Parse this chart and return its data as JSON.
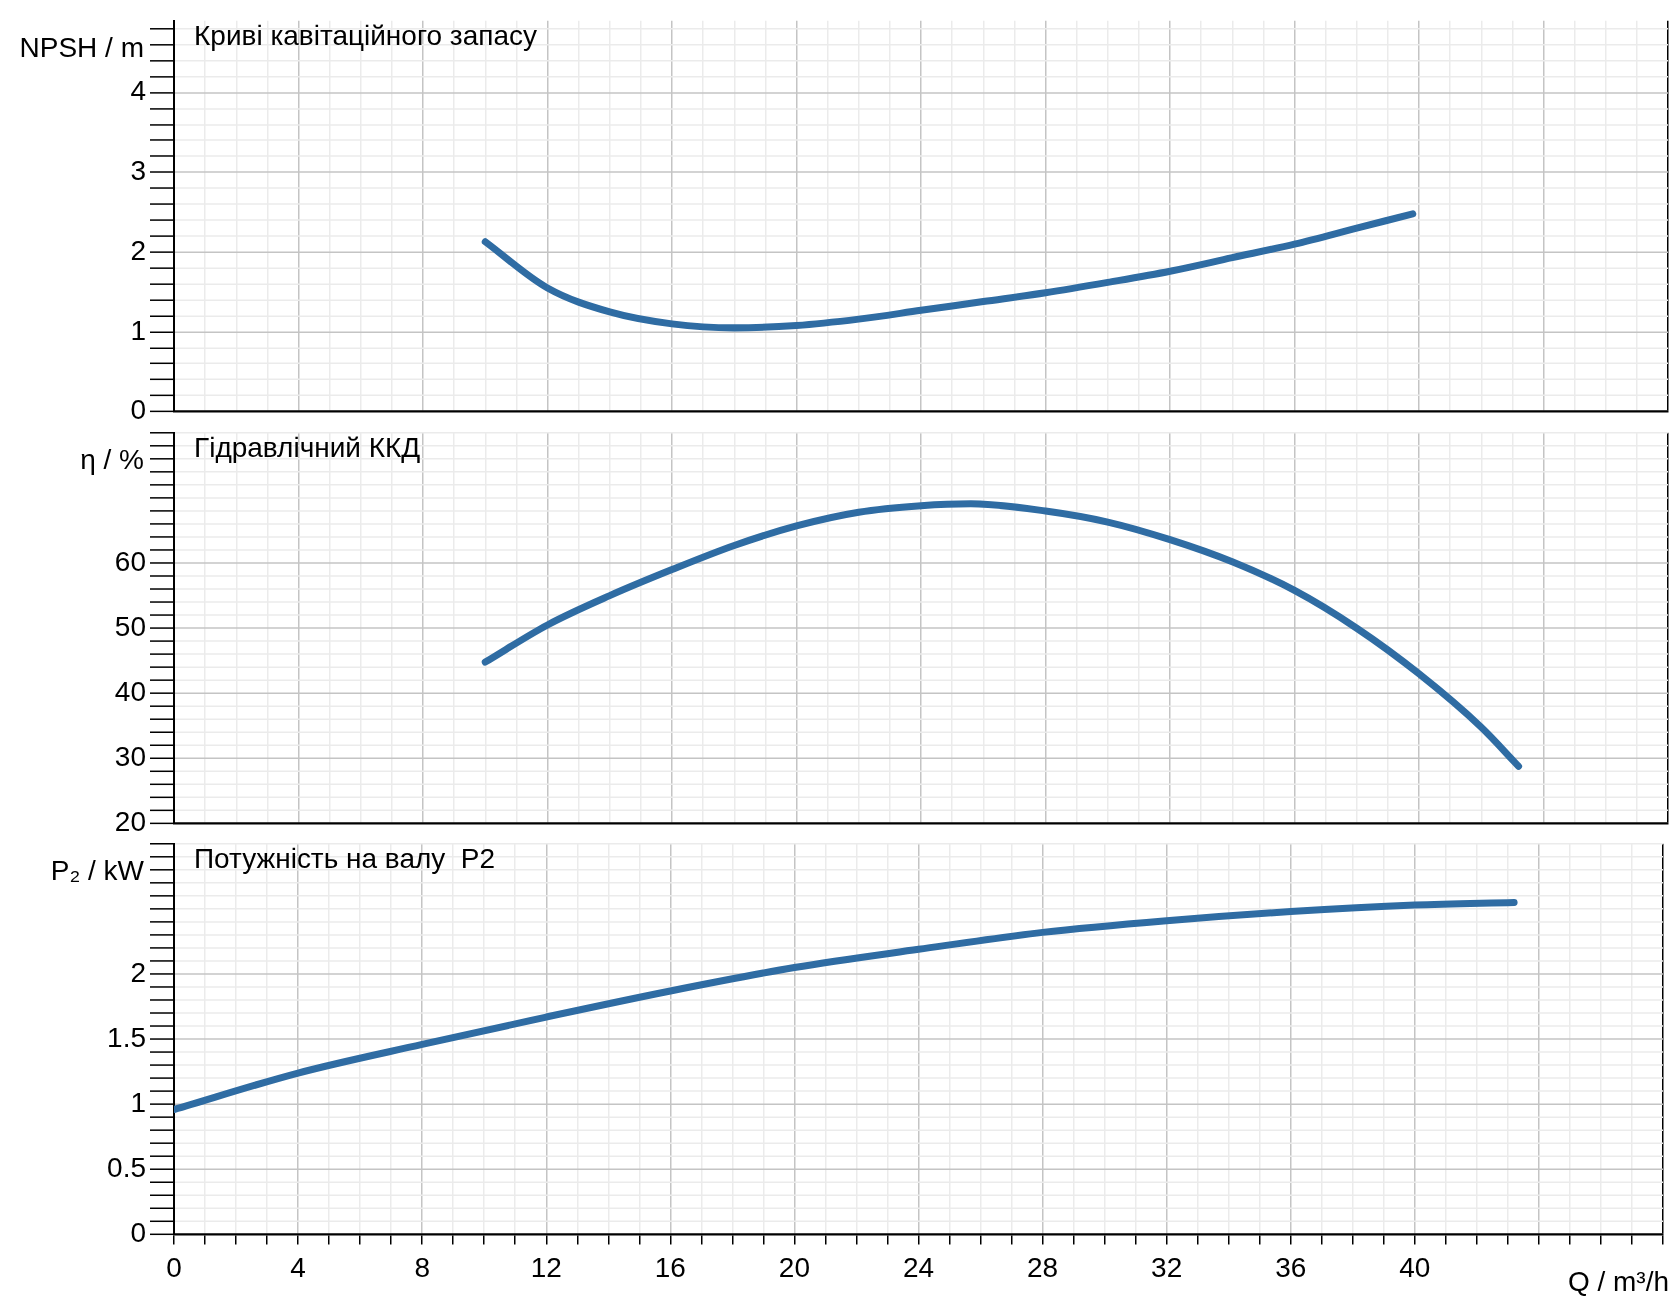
{
  "chart_data": [
    {
      "type": "line",
      "title": "Криві кавітаційного запасу",
      "ylabel": "NPSH / m",
      "x": [
        10,
        12,
        14,
        16,
        18,
        20,
        22,
        24,
        26,
        28,
        30,
        32,
        34,
        36,
        38,
        39.8
      ],
      "series": [
        {
          "color": "#2f6ca3",
          "values": [
            2.13,
            1.55,
            1.25,
            1.1,
            1.05,
            1.08,
            1.16,
            1.27,
            1.38,
            1.49,
            1.62,
            1.76,
            1.93,
            2.1,
            2.3,
            2.48
          ]
        }
      ],
      "xlim": [
        0,
        48
      ],
      "ylim": [
        0,
        4.9
      ],
      "tick_labels": "y",
      "grid": true,
      "xticks": [
        0,
        {
          "value": 1,
          "label": null
        },
        {
          "value": 2,
          "label": null
        },
        {
          "value": 3,
          "label": null
        },
        4,
        {
          "value": 5,
          "label": null
        },
        {
          "value": 6,
          "label": null
        },
        {
          "value": 7,
          "label": null
        },
        8,
        {
          "value": 9,
          "label": null
        },
        {
          "value": 10,
          "label": null
        },
        {
          "value": 11,
          "label": null
        },
        12,
        {
          "value": 13,
          "label": null
        },
        {
          "value": 14,
          "label": null
        },
        {
          "value": 15,
          "label": null
        },
        16,
        {
          "value": 17,
          "label": null
        },
        {
          "value": 18,
          "label": null
        },
        {
          "value": 19,
          "label": null
        },
        20,
        {
          "value": 21,
          "label": null
        },
        {
          "value": 22,
          "label": null
        },
        {
          "value": 23,
          "label": null
        },
        24,
        {
          "value": 25,
          "label": null
        },
        {
          "value": 26,
          "label": null
        },
        {
          "value": 27,
          "label": null
        },
        28,
        {
          "value": 29,
          "label": null
        },
        {
          "value": 30,
          "label": null
        },
        {
          "value": 31,
          "label": null
        },
        32,
        {
          "value": 33,
          "label": null
        },
        {
          "value": 34,
          "label": null
        },
        {
          "value": 35,
          "label": null
        },
        36,
        {
          "value": 37,
          "label": null
        },
        {
          "value": 38,
          "label": null
        },
        {
          "value": 39,
          "label": null
        },
        40,
        {
          "value": 41,
          "label": null
        },
        {
          "value": 42,
          "label": null
        },
        {
          "value": 43,
          "label": null
        },
        {
          "value": 44,
          "label": null
        },
        {
          "value": 45,
          "label": null
        },
        {
          "value": 46,
          "label": null
        },
        {
          "value": 47,
          "label": null
        },
        {
          "value": 48,
          "label": null
        }
      ],
      "yticks": [
        0,
        {
          "value": 0.2,
          "label": null
        },
        {
          "value": 0.4,
          "label": null
        },
        {
          "value": 0.6,
          "label": null
        },
        {
          "value": 0.8,
          "label": null
        },
        1,
        {
          "value": 1.2,
          "label": null
        },
        {
          "value": 1.4,
          "label": null
        },
        {
          "value": 1.6,
          "label": null
        },
        {
          "value": 1.8,
          "label": null
        },
        2,
        {
          "value": 2.2,
          "label": null
        },
        {
          "value": 2.4,
          "label": null
        },
        {
          "value": 2.6,
          "label": null
        },
        {
          "value": 2.8,
          "label": null
        },
        3,
        {
          "value": 3.2,
          "label": null
        },
        {
          "value": 3.4,
          "label": null
        },
        {
          "value": 3.6,
          "label": null
        },
        {
          "value": 3.8,
          "label": null
        },
        4,
        {
          "value": 4.2,
          "label": null
        },
        {
          "value": 4.4,
          "label": null
        },
        {
          "value": 4.6,
          "label": null
        },
        {
          "value": 4.8,
          "label": null
        }
      ]
    },
    {
      "type": "line",
      "title": "Гідравлічний ККД",
      "ylabel": "η / %",
      "x": [
        10,
        12,
        14,
        16,
        18,
        20,
        22,
        24,
        25.6,
        28,
        30,
        32,
        34,
        36,
        38,
        40,
        42,
        43.2
      ],
      "series": [
        {
          "color": "#2f6ca3",
          "values": [
            44.8,
            50.5,
            55,
            59,
            62.7,
            65.7,
            67.8,
            68.8,
            69.1,
            68,
            66.3,
            63.6,
            60.2,
            55.8,
            50,
            43,
            34.8,
            28.8
          ]
        }
      ],
      "xlim": [
        0,
        48
      ],
      "ylim": [
        20,
        80
      ],
      "tick_labels": "y",
      "grid": true,
      "xticks": [
        0,
        {
          "value": 1,
          "label": null
        },
        {
          "value": 2,
          "label": null
        },
        {
          "value": 3,
          "label": null
        },
        4,
        {
          "value": 5,
          "label": null
        },
        {
          "value": 6,
          "label": null
        },
        {
          "value": 7,
          "label": null
        },
        8,
        {
          "value": 9,
          "label": null
        },
        {
          "value": 10,
          "label": null
        },
        {
          "value": 11,
          "label": null
        },
        12,
        {
          "value": 13,
          "label": null
        },
        {
          "value": 14,
          "label": null
        },
        {
          "value": 15,
          "label": null
        },
        16,
        {
          "value": 17,
          "label": null
        },
        {
          "value": 18,
          "label": null
        },
        {
          "value": 19,
          "label": null
        },
        20,
        {
          "value": 21,
          "label": null
        },
        {
          "value": 22,
          "label": null
        },
        {
          "value": 23,
          "label": null
        },
        24,
        {
          "value": 25,
          "label": null
        },
        {
          "value": 26,
          "label": null
        },
        {
          "value": 27,
          "label": null
        },
        28,
        {
          "value": 29,
          "label": null
        },
        {
          "value": 30,
          "label": null
        },
        {
          "value": 31,
          "label": null
        },
        32,
        {
          "value": 33,
          "label": null
        },
        {
          "value": 34,
          "label": null
        },
        {
          "value": 35,
          "label": null
        },
        36,
        {
          "value": 37,
          "label": null
        },
        {
          "value": 38,
          "label": null
        },
        {
          "value": 39,
          "label": null
        },
        40,
        {
          "value": 41,
          "label": null
        },
        {
          "value": 42,
          "label": null
        },
        {
          "value": 43,
          "label": null
        },
        {
          "value": 44,
          "label": null
        },
        {
          "value": 45,
          "label": null
        },
        {
          "value": 46,
          "label": null
        },
        {
          "value": 47,
          "label": null
        },
        {
          "value": 48,
          "label": null
        }
      ],
      "yticks": [
        20,
        {
          "value": 22,
          "label": null
        },
        {
          "value": 24,
          "label": null
        },
        {
          "value": 26,
          "label": null
        },
        {
          "value": 28,
          "label": null
        },
        30,
        {
          "value": 32,
          "label": null
        },
        {
          "value": 34,
          "label": null
        },
        {
          "value": 36,
          "label": null
        },
        {
          "value": 38,
          "label": null
        },
        40,
        {
          "value": 42,
          "label": null
        },
        {
          "value": 44,
          "label": null
        },
        {
          "value": 46,
          "label": null
        },
        {
          "value": 48,
          "label": null
        },
        50,
        {
          "value": 52,
          "label": null
        },
        {
          "value": 54,
          "label": null
        },
        {
          "value": 56,
          "label": null
        },
        {
          "value": 58,
          "label": null
        },
        60,
        {
          "value": 62,
          "label": null
        },
        {
          "value": 64,
          "label": null
        },
        {
          "value": 66,
          "label": null
        },
        {
          "value": 68,
          "label": null
        },
        {
          "value": 70,
          "label": null
        },
        {
          "value": 72,
          "label": null
        },
        {
          "value": 74,
          "label": null
        },
        {
          "value": 76,
          "label": null
        },
        {
          "value": 78,
          "label": null
        },
        {
          "value": 80,
          "label": null
        }
      ]
    },
    {
      "type": "line",
      "title": "Потужність на валу  P2",
      "ylabel": "P₂ / kW",
      "xlabel": "Q / m³/h",
      "x": [
        0,
        4,
        8,
        12,
        16,
        20,
        24,
        28,
        32,
        36,
        40,
        43.2
      ],
      "series": [
        {
          "color": "#2f6ca3",
          "values": [
            0.96,
            1.24,
            1.46,
            1.67,
            1.87,
            2.05,
            2.19,
            2.32,
            2.41,
            2.48,
            2.53,
            2.55
          ]
        }
      ],
      "xlim": [
        0,
        48
      ],
      "ylim": [
        0,
        3
      ],
      "grid": true,
      "xticks": [
        0,
        {
          "value": 1,
          "label": null
        },
        {
          "value": 2,
          "label": null
        },
        {
          "value": 3,
          "label": null
        },
        4,
        {
          "value": 5,
          "label": null
        },
        {
          "value": 6,
          "label": null
        },
        {
          "value": 7,
          "label": null
        },
        8,
        {
          "value": 9,
          "label": null
        },
        {
          "value": 10,
          "label": null
        },
        {
          "value": 11,
          "label": null
        },
        12,
        {
          "value": 13,
          "label": null
        },
        {
          "value": 14,
          "label": null
        },
        {
          "value": 15,
          "label": null
        },
        16,
        {
          "value": 17,
          "label": null
        },
        {
          "value": 18,
          "label": null
        },
        {
          "value": 19,
          "label": null
        },
        20,
        {
          "value": 21,
          "label": null
        },
        {
          "value": 22,
          "label": null
        },
        {
          "value": 23,
          "label": null
        },
        24,
        {
          "value": 25,
          "label": null
        },
        {
          "value": 26,
          "label": null
        },
        {
          "value": 27,
          "label": null
        },
        28,
        {
          "value": 29,
          "label": null
        },
        {
          "value": 30,
          "label": null
        },
        {
          "value": 31,
          "label": null
        },
        32,
        {
          "value": 33,
          "label": null
        },
        {
          "value": 34,
          "label": null
        },
        {
          "value": 35,
          "label": null
        },
        36,
        {
          "value": 37,
          "label": null
        },
        {
          "value": 38,
          "label": null
        },
        {
          "value": 39,
          "label": null
        },
        40,
        {
          "value": 41,
          "label": null
        },
        {
          "value": 42,
          "label": null
        },
        {
          "value": 43,
          "label": null
        },
        {
          "value": 44,
          "label": null
        },
        {
          "value": 45,
          "label": null
        },
        {
          "value": 46,
          "label": null
        },
        {
          "value": 47,
          "label": null
        },
        {
          "value": 48,
          "label": null
        }
      ],
      "yticks": [
        0,
        {
          "value": 0.1,
          "label": null
        },
        {
          "value": 0.2,
          "label": null
        },
        {
          "value": 0.3,
          "label": null
        },
        {
          "value": 0.4,
          "label": null
        },
        0.5,
        {
          "value": 0.6,
          "label": null
        },
        {
          "value": 0.7,
          "label": null
        },
        {
          "value": 0.8,
          "label": null
        },
        {
          "value": 0.9,
          "label": null
        },
        1,
        {
          "value": 1.1,
          "label": null
        },
        {
          "value": 1.2,
          "label": null
        },
        {
          "value": 1.3,
          "label": null
        },
        {
          "value": 1.4,
          "label": null
        },
        1.5,
        {
          "value": 1.6,
          "label": null
        },
        {
          "value": 1.7,
          "label": null
        },
        {
          "value": 1.8,
          "label": null
        },
        {
          "value": 1.9,
          "label": null
        },
        2,
        {
          "value": 2.1,
          "label": null
        },
        {
          "value": 2.2,
          "label": null
        },
        {
          "value": 2.3,
          "label": null
        },
        {
          "value": 2.4,
          "label": null
        },
        {
          "value": 2.5,
          "label": null
        },
        {
          "value": 2.6,
          "label": null
        },
        {
          "value": 2.7,
          "label": null
        },
        {
          "value": 2.8,
          "label": null
        },
        {
          "value": 2.9,
          "label": null
        },
        {
          "value": 3,
          "label": null
        }
      ]
    }
  ]
}
